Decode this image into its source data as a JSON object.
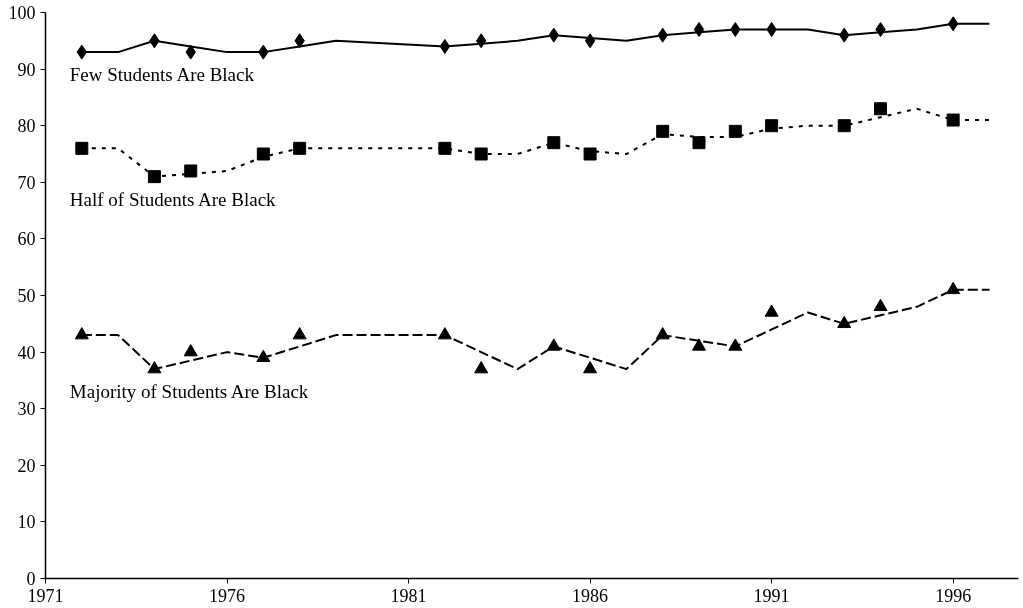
{
  "chart_data": {
    "type": "line",
    "xlim": [
      1971,
      1997.8
    ],
    "ylim": [
      0,
      100
    ],
    "xticks": [
      1971,
      1976,
      1981,
      1986,
      1991,
      1996
    ],
    "yticks": [
      0,
      10,
      20,
      30,
      40,
      50,
      60,
      70,
      80,
      90,
      100
    ],
    "grid": false,
    "legend": false,
    "series": [
      {
        "name": "Few Students Are Black",
        "type": "scatter",
        "marker": "diamond",
        "color": "#000000",
        "x": [
          1972,
          1974,
          1975,
          1977,
          1978,
          1982,
          1983,
          1985,
          1986,
          1988,
          1989,
          1990,
          1991,
          1993,
          1994,
          1996
        ],
        "values": [
          93,
          95,
          93,
          93,
          95,
          94,
          95,
          96,
          95,
          96,
          97,
          97,
          97,
          96,
          97,
          98
        ]
      },
      {
        "line_style": "solid",
        "marker": "none",
        "color": "#000000",
        "x": [
          1972,
          1973,
          1974,
          1975,
          1976,
          1977,
          1978,
          1979,
          1982,
          1983,
          1984,
          1985,
          1986,
          1987,
          1988,
          1989,
          1990,
          1991,
          1992,
          1993,
          1994,
          1995,
          1996,
          1997
        ],
        "values": [
          93,
          93,
          95,
          94,
          93,
          93,
          94,
          95,
          94,
          94.5,
          95,
          96,
          95.5,
          95,
          96,
          96.5,
          97,
          97,
          97,
          96,
          96.5,
          97,
          98,
          98
        ]
      },
      {
        "name": "Half of Students Are Black",
        "type": "scatter",
        "marker": "square",
        "color": "#000000",
        "x": [
          1972,
          1974,
          1975,
          1977,
          1978,
          1982,
          1983,
          1985,
          1986,
          1988,
          1989,
          1990,
          1991,
          1993,
          1994,
          1996
        ],
        "values": [
          76,
          71,
          72,
          75,
          76,
          76,
          75,
          77,
          75,
          79,
          77,
          79,
          80,
          80,
          83,
          81
        ]
      },
      {
        "line_style": "dotted",
        "marker": "none",
        "color": "#000000",
        "x": [
          1972,
          1973,
          1974,
          1975,
          1976,
          1977,
          1978,
          1979,
          1982,
          1983,
          1984,
          1985,
          1986,
          1987,
          1988,
          1989,
          1990,
          1991,
          1992,
          1993,
          1994,
          1995,
          1996,
          1997
        ],
        "values": [
          76,
          76,
          71,
          71.5,
          72,
          74.5,
          76,
          76,
          76,
          75,
          75,
          77,
          75.5,
          75,
          78.5,
          78,
          78,
          79.5,
          80,
          80,
          81.5,
          83,
          81,
          81
        ]
      },
      {
        "name": "Majority of Students Are Black",
        "type": "scatter",
        "marker": "triangle",
        "color": "#000000",
        "x": [
          1972,
          1974,
          1975,
          1977,
          1978,
          1982,
          1983,
          1985,
          1986,
          1988,
          1989,
          1990,
          1991,
          1993,
          1994,
          1996
        ],
        "values": [
          43,
          37,
          40,
          39,
          43,
          43,
          37,
          41,
          37,
          43,
          41,
          41,
          47,
          45,
          48,
          51
        ]
      },
      {
        "line_style": "dashed",
        "marker": "none",
        "color": "#000000",
        "x": [
          1972,
          1973,
          1974,
          1975,
          1976,
          1977,
          1978,
          1979,
          1982,
          1983,
          1984,
          1985,
          1986,
          1987,
          1988,
          1989,
          1990,
          1991,
          1992,
          1993,
          1994,
          1995,
          1996,
          1997
        ],
        "values": [
          43,
          43,
          37,
          38.5,
          40,
          39,
          41,
          43,
          43,
          40,
          37,
          41,
          39,
          37,
          43,
          42,
          41,
          44,
          47,
          45,
          46.5,
          48,
          51,
          51
        ]
      }
    ]
  }
}
